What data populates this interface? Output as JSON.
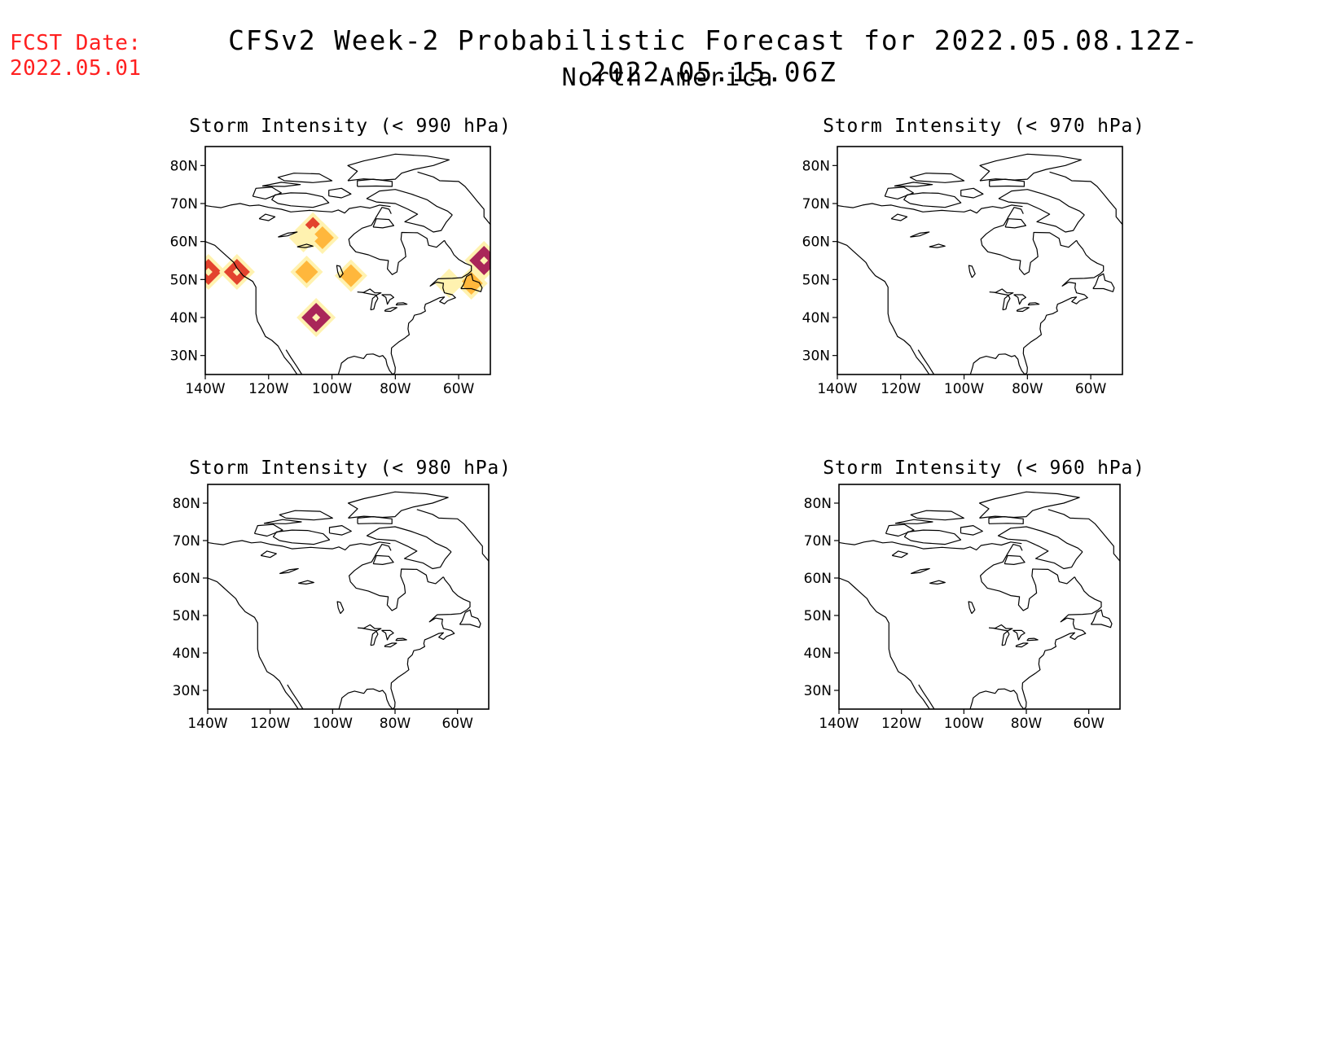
{
  "header": {
    "fcst_line1": "FCST Date:",
    "fcst_line2": "2022.05.01",
    "title": "CFSv2 Week-2 Probabilistic Forecast for 2022.05.08.12Z-2022.05.15.06Z",
    "subtitle": "North America"
  },
  "axes": {
    "lat_labels": [
      "80N",
      "70N",
      "60N",
      "50N",
      "40N",
      "30N"
    ],
    "lon_labels": [
      "140W",
      "120W",
      "100W",
      "80W",
      "60W"
    ],
    "lat_values": [
      80,
      70,
      60,
      50,
      40,
      30
    ],
    "lon_values": [
      -140,
      -120,
      -100,
      -80,
      -60
    ],
    "lat_range": [
      25,
      85
    ],
    "lon_range": [
      -140,
      -50
    ]
  },
  "panels": [
    {
      "title": "Storm Intensity (< 990 hPa)",
      "has_shading": true
    },
    {
      "title": "Storm Intensity (< 970 hPa)",
      "has_shading": false
    },
    {
      "title": "Storm Intensity (< 980 hPa)",
      "has_shading": false
    },
    {
      "title": "Storm Intensity (< 960 hPa)",
      "has_shading": false
    }
  ],
  "colors": {
    "fcst_text": "#ff2020",
    "shade_low": "#fff2b0",
    "shade_mid": "#ffb030",
    "shade_high": "#e03020",
    "shade_peak": "#a01050"
  },
  "shaded_areas_990": [
    {
      "lon": -106,
      "lat": 63,
      "level": 3
    },
    {
      "lon": -103,
      "lat": 61,
      "level": 2
    },
    {
      "lon": -109,
      "lat": 61,
      "level": 1
    },
    {
      "lon": -139,
      "lat": 52,
      "level": 3
    },
    {
      "lon": -130,
      "lat": 52,
      "level": 3
    },
    {
      "lon": -108,
      "lat": 52,
      "level": 2
    },
    {
      "lon": -94,
      "lat": 51,
      "level": 2
    },
    {
      "lon": -105,
      "lat": 40,
      "level": 4
    },
    {
      "lon": -52,
      "lat": 55,
      "level": 4
    },
    {
      "lon": -56,
      "lat": 49,
      "level": 2
    },
    {
      "lon": -63,
      "lat": 49,
      "level": 1
    }
  ]
}
